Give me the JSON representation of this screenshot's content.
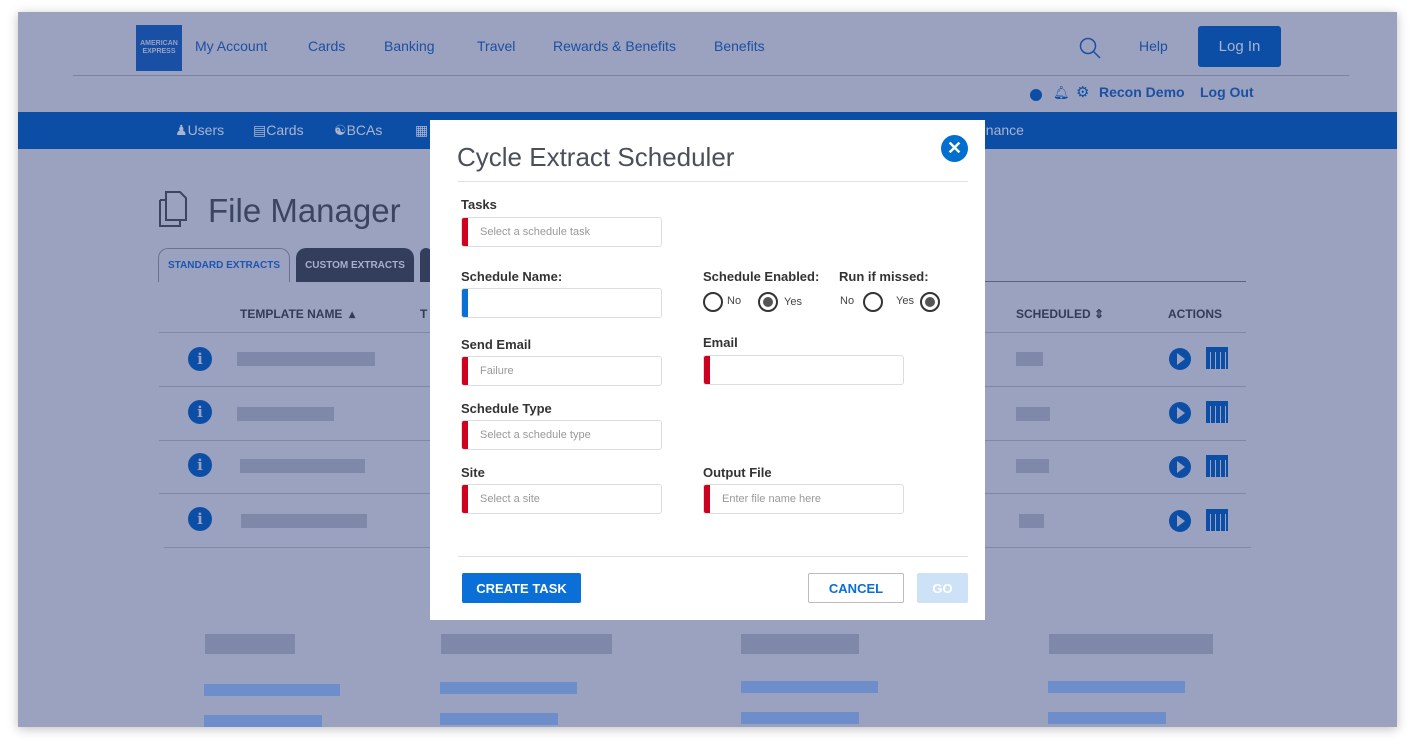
{
  "header": {
    "logo": [
      "AMERICAN",
      "EXPRESS"
    ],
    "nav": [
      "My Account",
      "Cards",
      "Banking",
      "Travel",
      "Rewards & Benefits",
      "Benefits"
    ],
    "help": "Help",
    "login": "Log In",
    "user": "Recon Demo",
    "logout": "Log Out"
  },
  "subnav": {
    "users": "Users",
    "cards": "Cards",
    "bcas": "BCAs",
    "partial": "enance"
  },
  "page": {
    "title": "File Manager",
    "tabs": [
      "STANDARD EXTRACTS",
      "CUSTOM EXTRACTS"
    ],
    "columns": {
      "template": "TEMPLATE NAME",
      "t": "T",
      "scheduled": "SCHEDULED",
      "actions": "ACTIONS"
    },
    "info": "i"
  },
  "modal": {
    "title": "Cycle Extract Scheduler",
    "tasks": {
      "label": "Tasks",
      "placeholder": "Select a schedule task"
    },
    "schedule_name": {
      "label": "Schedule Name:",
      "value": ""
    },
    "schedule_enabled": {
      "label": "Schedule Enabled:",
      "no": "No",
      "yes": "Yes",
      "selected": "Yes"
    },
    "run_if_missed": {
      "label": "Run if missed:",
      "no": "No",
      "yes": "Yes",
      "selected": "Yes"
    },
    "send_email": {
      "label": "Send Email",
      "value": "Failure"
    },
    "email": {
      "label": "Email",
      "value": ""
    },
    "schedule_type": {
      "label": "Schedule Type",
      "placeholder": "Select a schedule type"
    },
    "site": {
      "label": "Site",
      "placeholder": "Select a site"
    },
    "output_file": {
      "label": "Output File",
      "placeholder": "Enter file name here"
    },
    "create": "CREATE TASK",
    "cancel": "CANCEL",
    "go": "GO"
  },
  "colors": {
    "brand": "#006fcf",
    "required": "#d00020",
    "overlay": "#9aa2bf"
  }
}
